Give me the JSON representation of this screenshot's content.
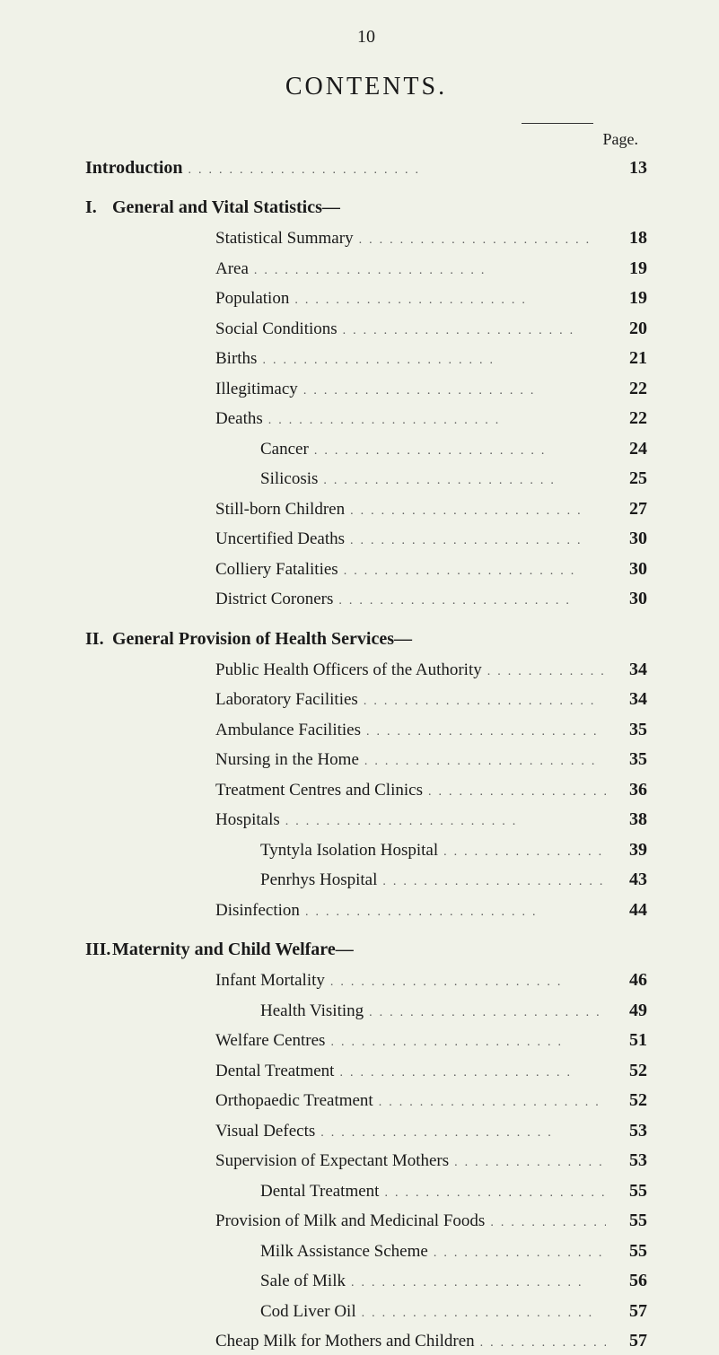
{
  "page_number": "10",
  "title": "CONTENTS.",
  "page_label": "Page.",
  "leader_dots": ".......................",
  "introduction": {
    "label": "Introduction",
    "page": "13"
  },
  "sections": [
    {
      "num": "I.",
      "title": "General and Vital Statistics—",
      "entries": [
        {
          "label": "Statistical Summary",
          "page": "18",
          "indent": 1
        },
        {
          "label": "Area",
          "page": "19",
          "indent": 1
        },
        {
          "label": "Population",
          "page": "19",
          "indent": 1
        },
        {
          "label": "Social Conditions",
          "page": "20",
          "indent": 1
        },
        {
          "label": "Births",
          "page": "21",
          "indent": 1
        },
        {
          "label": "Illegitimacy",
          "page": "22",
          "indent": 1
        },
        {
          "label": "Deaths",
          "page": "22",
          "indent": 1
        },
        {
          "label": "Cancer",
          "page": "24",
          "indent": 2
        },
        {
          "label": "Silicosis",
          "page": "25",
          "indent": 2
        },
        {
          "label": "Still-born Children",
          "page": "27",
          "indent": 1
        },
        {
          "label": "Uncertified Deaths",
          "page": "30",
          "indent": 1
        },
        {
          "label": "Colliery Fatalities",
          "page": "30",
          "indent": 1
        },
        {
          "label": "District Coroners",
          "page": "30",
          "indent": 1
        }
      ]
    },
    {
      "num": "II.",
      "title": "General Provision of Health Services—",
      "entries": [
        {
          "label": "Public Health Officers of the Authority",
          "page": "34",
          "indent": 1
        },
        {
          "label": "Laboratory Facilities",
          "page": "34",
          "indent": 1
        },
        {
          "label": "Ambulance Facilities",
          "page": "35",
          "indent": 1
        },
        {
          "label": "Nursing in the Home",
          "page": "35",
          "indent": 1
        },
        {
          "label": "Treatment Centres and Clinics",
          "page": "36",
          "indent": 1
        },
        {
          "label": "Hospitals",
          "page": "38",
          "indent": 1
        },
        {
          "label": "Tyntyla Isolation Hospital",
          "page": "39",
          "indent": 2
        },
        {
          "label": "Penrhys Hospital",
          "page": "43",
          "indent": 2
        },
        {
          "label": "Disinfection",
          "page": "44",
          "indent": 1
        }
      ]
    },
    {
      "num": "III.",
      "title": "Maternity and Child Welfare—",
      "entries": [
        {
          "label": "Infant Mortality",
          "page": "46",
          "indent": 1
        },
        {
          "label": "Health Visiting",
          "page": "49",
          "indent": 2
        },
        {
          "label": "Welfare Centres",
          "page": "51",
          "indent": 1
        },
        {
          "label": "Dental Treatment",
          "page": "52",
          "indent": 1
        },
        {
          "label": "Orthopaedic Treatment",
          "page": "52",
          "indent": 1
        },
        {
          "label": "Visual Defects",
          "page": "53",
          "indent": 1
        },
        {
          "label": "Supervision of Expectant Mothers",
          "page": "53",
          "indent": 1
        },
        {
          "label": "Dental Treatment",
          "page": "55",
          "indent": 2
        },
        {
          "label": "Provision of Milk and Medicinal Foods",
          "page": "55",
          "indent": 1
        },
        {
          "label": "Milk Assistance Scheme",
          "page": "55",
          "indent": 2
        },
        {
          "label": "Sale of Milk",
          "page": "56",
          "indent": 2
        },
        {
          "label": "Cod Liver Oil",
          "page": "57",
          "indent": 2
        },
        {
          "label": "Cheap Milk for Mothers and Children",
          "page": "57",
          "indent": 1
        }
      ]
    }
  ]
}
